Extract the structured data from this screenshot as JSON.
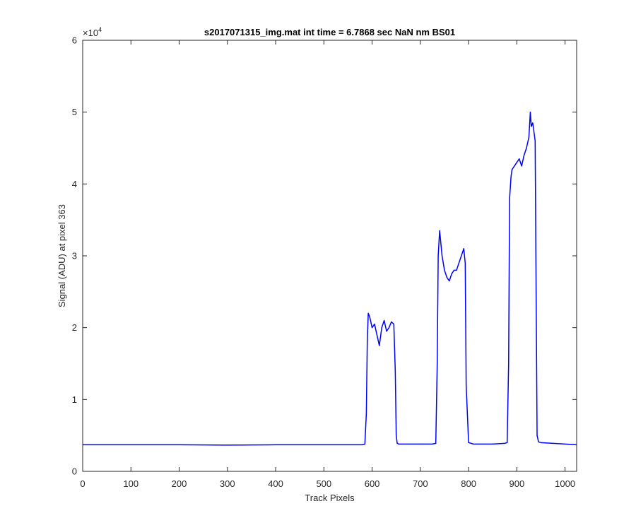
{
  "chart_data": {
    "type": "line",
    "title": "s2017071315_img.mat int time = 6.7868 sec  NaN nm BS01",
    "xlabel": "Track Pixels",
    "ylabel": "Signal (ADU) at pixel 363",
    "xlim": [
      0,
      1024
    ],
    "ylim": [
      0,
      60000
    ],
    "x_ticks": [
      0,
      100,
      200,
      300,
      400,
      500,
      600,
      700,
      800,
      900,
      1000
    ],
    "y_ticks": [
      0,
      1,
      2,
      3,
      4,
      5,
      6
    ],
    "y_tick_labels": [
      "0",
      "1",
      "2",
      "3",
      "4",
      "5",
      "6"
    ],
    "y_exponent_base": "×10",
    "y_exponent_power": "4",
    "grid": false,
    "legend": "none",
    "line_color": "#0000ff",
    "series": [
      {
        "x": [
          0,
          100,
          200,
          300,
          400,
          500,
          580,
          585,
          588,
          590,
          592,
          595,
          600,
          605,
          610,
          615,
          620,
          625,
          630,
          635,
          640,
          645,
          648,
          650,
          652,
          655,
          660,
          700,
          725,
          732,
          735,
          737,
          740,
          745,
          750,
          755,
          760,
          765,
          770,
          775,
          780,
          785,
          790,
          793,
          795,
          800,
          810,
          850,
          875,
          880,
          883,
          885,
          888,
          890,
          895,
          900,
          905,
          910,
          915,
          920,
          925,
          928,
          930,
          933,
          935,
          938,
          940,
          942,
          945,
          950,
          1000,
          1024
        ],
        "y": [
          3700,
          3700,
          3700,
          3650,
          3700,
          3700,
          3700,
          3800,
          8000,
          18000,
          22000,
          21500,
          20000,
          20500,
          19000,
          17500,
          20000,
          21000,
          19500,
          20000,
          20800,
          20500,
          14000,
          5000,
          3900,
          3800,
          3800,
          3800,
          3800,
          3900,
          15000,
          30000,
          33500,
          30000,
          28000,
          27000,
          26500,
          27500,
          28000,
          28000,
          29000,
          30000,
          31000,
          29000,
          12000,
          4000,
          3800,
          3800,
          3900,
          4000,
          15000,
          38000,
          41000,
          42000,
          42500,
          43000,
          43500,
          42500,
          44000,
          45000,
          46500,
          50000,
          48000,
          48500,
          47500,
          46000,
          25000,
          5000,
          4100,
          4000,
          3800,
          3700
        ]
      }
    ]
  }
}
